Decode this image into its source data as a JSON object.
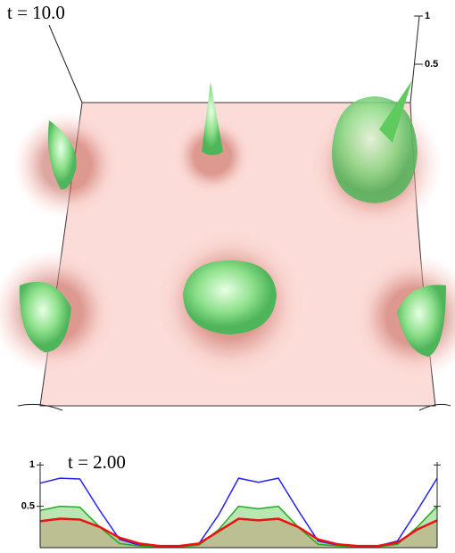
{
  "chart_data": [
    {
      "type": "surface",
      "title": "t = 10.0",
      "zlim": [
        0,
        1
      ],
      "zticks": [
        1,
        0.5
      ]
    },
    {
      "type": "line",
      "title": "t = 2.00",
      "x": [
        0,
        0.05,
        0.1,
        0.15,
        0.2,
        0.25,
        0.3,
        0.35,
        0.4,
        0.45,
        0.5,
        0.55,
        0.6,
        0.65,
        0.7,
        0.75,
        0.8,
        0.85,
        0.9,
        0.95,
        1
      ],
      "xlim": [
        0,
        1
      ],
      "ylim": [
        0,
        1.1
      ],
      "yticks": [
        1,
        0.5
      ],
      "series": [
        {
          "color": "#2222ee",
          "values": [
            0.78,
            0.84,
            0.83,
            0.45,
            0.1,
            0.03,
            0.02,
            0.02,
            0.05,
            0.4,
            0.84,
            0.79,
            0.84,
            0.45,
            0.08,
            0.03,
            0.02,
            0.02,
            0.08,
            0.45,
            0.84
          ]
        },
        {
          "color": "#22aa22",
          "fill_color": "#a8e0a0",
          "values": [
            0.45,
            0.5,
            0.49,
            0.25,
            0.05,
            0.02,
            0.01,
            0.01,
            0.03,
            0.22,
            0.5,
            0.47,
            0.5,
            0.25,
            0.04,
            0.02,
            0.01,
            0.01,
            0.04,
            0.25,
            0.5
          ]
        },
        {
          "color": "#ee1111",
          "fill_color": "#bdb58a",
          "values": [
            0.32,
            0.35,
            0.34,
            0.25,
            0.12,
            0.05,
            0.02,
            0.02,
            0.05,
            0.2,
            0.35,
            0.33,
            0.35,
            0.25,
            0.1,
            0.04,
            0.02,
            0.02,
            0.06,
            0.22,
            0.33
          ]
        }
      ]
    }
  ]
}
